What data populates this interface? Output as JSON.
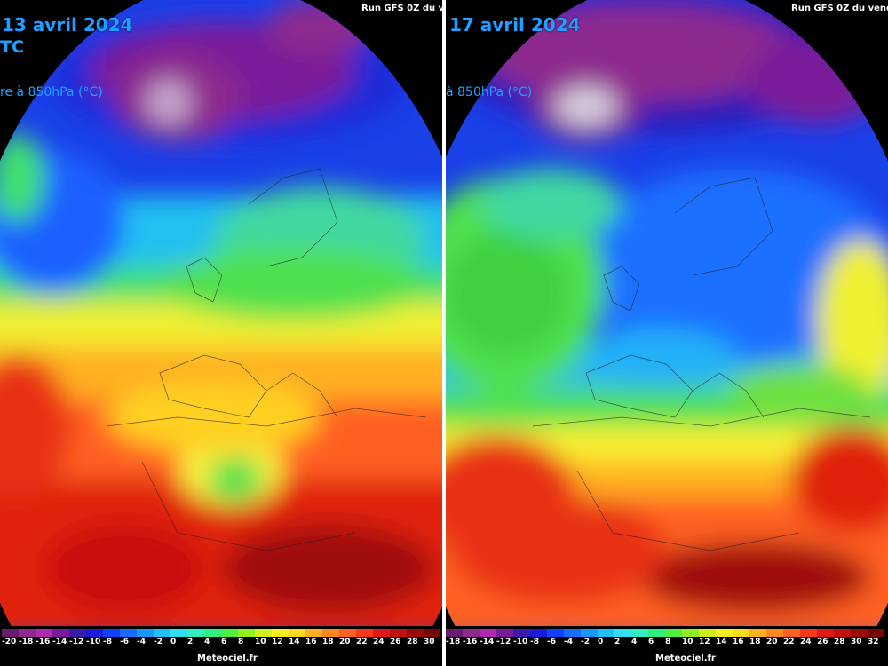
{
  "left": {
    "date": "13 avril 2024",
    "sub": "TC",
    "param": "re à 850hPa (°C)",
    "run": "Run GFS 0Z du v"
  },
  "right": {
    "date": "17 avril 2024",
    "param": "à 850hPa (°C)",
    "run": "Run GFS 0Z du vend"
  },
  "legend": {
    "ticks_left": [
      "-20",
      "-18",
      "-16",
      "-14",
      "-12",
      "-10",
      "-8",
      "-6",
      "-4",
      "-2",
      "0",
      "2",
      "4",
      "6",
      "8",
      "10",
      "12",
      "14",
      "16",
      "18",
      "20",
      "22",
      "24",
      "26",
      "28",
      "30"
    ],
    "ticks_right": [
      "-18",
      "-16",
      "-14",
      "-12",
      "-10",
      "-8",
      "-6",
      "-4",
      "-2",
      "0",
      "2",
      "4",
      "6",
      "8",
      "10",
      "12",
      "14",
      "16",
      "18",
      "20",
      "22",
      "24",
      "26",
      "28",
      "30",
      "32"
    ],
    "credit": "Meteociel.fr",
    "colors": [
      "#6a1c6c",
      "#8e2a8e",
      "#b02ab0",
      "#7a1a9a",
      "#3a1aa8",
      "#1a1ad8",
      "#1040ff",
      "#1a6cff",
      "#1a98ff",
      "#20c0ff",
      "#30e0f0",
      "#30f0c0",
      "#30f080",
      "#50f040",
      "#90f020",
      "#d0f020",
      "#f8f020",
      "#ffd820",
      "#ffb020",
      "#ff8820",
      "#ff6020",
      "#f83818",
      "#e01818",
      "#c01010",
      "#9a0808",
      "#7a0505"
    ]
  },
  "map": {
    "cold_core": "#6a1c6c",
    "ocean_blue": "#1a40e8",
    "cyan": "#20c8f0",
    "green": "#40e050",
    "yellow": "#f8f030",
    "orange": "#ff9020",
    "red": "#e02010",
    "darkred": "#900808"
  }
}
